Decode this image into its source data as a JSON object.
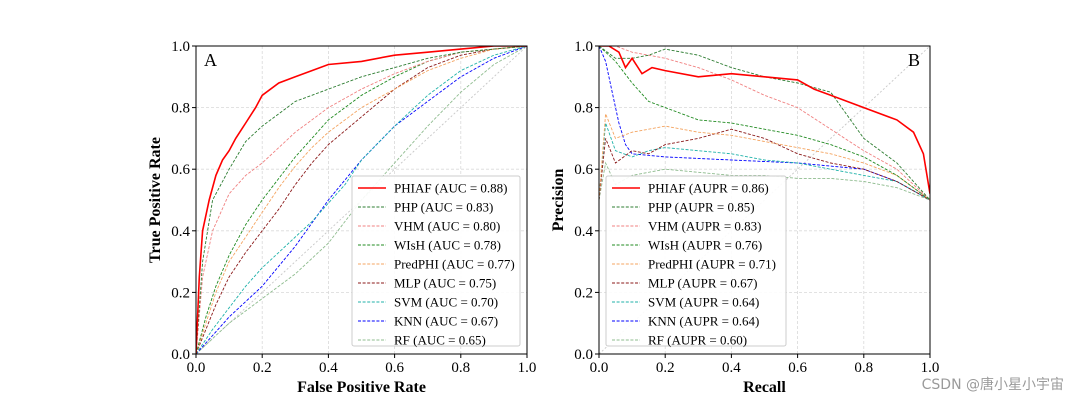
{
  "chart_data": [
    {
      "type": "line",
      "panel_label": "A",
      "xlabel": "False Positive Rate",
      "ylabel": "True Positive Rate",
      "xlim": [
        0,
        1
      ],
      "ylim": [
        0,
        1
      ],
      "xticks": [
        "0.0",
        "0.2",
        "0.4",
        "0.6",
        "0.8",
        "1.0"
      ],
      "yticks": [
        "0.0",
        "0.2",
        "0.4",
        "0.6",
        "0.8",
        "1.0"
      ],
      "grid": true,
      "legend_position": "lower-right",
      "series": [
        {
          "name": "PHIAF (AUC = 0.88)",
          "color": "#ff0000",
          "dash": "solid",
          "x": [
            0,
            0.01,
            0.02,
            0.04,
            0.06,
            0.08,
            0.1,
            0.12,
            0.15,
            0.18,
            0.2,
            0.25,
            0.3,
            0.35,
            0.4,
            0.5,
            0.6,
            0.7,
            0.8,
            0.9,
            1.0
          ],
          "y": [
            0,
            0.25,
            0.4,
            0.5,
            0.58,
            0.63,
            0.66,
            0.7,
            0.75,
            0.8,
            0.84,
            0.88,
            0.9,
            0.92,
            0.94,
            0.95,
            0.97,
            0.98,
            0.99,
            1.0,
            1.0
          ]
        },
        {
          "name": "PHP (AUC = 0.83)",
          "color": "#2e7d32",
          "dash": "dashed",
          "x": [
            0,
            0.02,
            0.05,
            0.1,
            0.15,
            0.2,
            0.25,
            0.3,
            0.35,
            0.4,
            0.5,
            0.6,
            0.7,
            0.8,
            0.9,
            1.0
          ],
          "y": [
            0,
            0.3,
            0.5,
            0.6,
            0.69,
            0.74,
            0.78,
            0.82,
            0.84,
            0.86,
            0.9,
            0.93,
            0.96,
            0.98,
            0.99,
            1.0
          ]
        },
        {
          "name": "VHM (AUC = 0.80)",
          "color": "#f08080",
          "dash": "dashed",
          "x": [
            0,
            0.02,
            0.05,
            0.1,
            0.15,
            0.2,
            0.25,
            0.3,
            0.35,
            0.4,
            0.5,
            0.6,
            0.7,
            0.8,
            0.9,
            1.0
          ],
          "y": [
            0,
            0.25,
            0.4,
            0.52,
            0.58,
            0.62,
            0.67,
            0.72,
            0.76,
            0.8,
            0.86,
            0.91,
            0.95,
            0.98,
            0.99,
            1.0
          ]
        },
        {
          "name": "WIsH (AUC = 0.78)",
          "color": "#228b22",
          "dash": "dashed",
          "x": [
            0,
            0.03,
            0.06,
            0.1,
            0.15,
            0.2,
            0.25,
            0.3,
            0.35,
            0.4,
            0.5,
            0.6,
            0.7,
            0.8,
            0.9,
            1.0
          ],
          "y": [
            0,
            0.12,
            0.22,
            0.32,
            0.42,
            0.5,
            0.57,
            0.64,
            0.7,
            0.76,
            0.84,
            0.9,
            0.95,
            0.98,
            0.99,
            1.0
          ]
        },
        {
          "name": "PredPHI (AUC = 0.77)",
          "color": "#f4a460",
          "dash": "dashed",
          "x": [
            0,
            0.03,
            0.06,
            0.1,
            0.15,
            0.2,
            0.25,
            0.3,
            0.35,
            0.4,
            0.5,
            0.6,
            0.7,
            0.8,
            0.9,
            1.0
          ],
          "y": [
            0,
            0.1,
            0.2,
            0.3,
            0.38,
            0.46,
            0.54,
            0.61,
            0.67,
            0.72,
            0.8,
            0.86,
            0.92,
            0.96,
            0.99,
            1.0
          ]
        },
        {
          "name": "MLP (AUC = 0.75)",
          "color": "#8b1a1a",
          "dash": "dashed",
          "x": [
            0,
            0.03,
            0.06,
            0.1,
            0.15,
            0.2,
            0.25,
            0.3,
            0.35,
            0.4,
            0.5,
            0.6,
            0.7,
            0.8,
            0.9,
            1.0
          ],
          "y": [
            0,
            0.08,
            0.16,
            0.25,
            0.33,
            0.4,
            0.47,
            0.55,
            0.62,
            0.68,
            0.77,
            0.86,
            0.93,
            0.97,
            0.99,
            1.0
          ]
        },
        {
          "name": "SVM (AUC = 0.70)",
          "color": "#20b2aa",
          "dash": "dashed",
          "x": [
            0,
            0.05,
            0.1,
            0.15,
            0.2,
            0.25,
            0.3,
            0.35,
            0.4,
            0.45,
            0.5,
            0.6,
            0.7,
            0.8,
            0.9,
            1.0
          ],
          "y": [
            0,
            0.08,
            0.15,
            0.22,
            0.28,
            0.33,
            0.38,
            0.43,
            0.49,
            0.55,
            0.63,
            0.74,
            0.84,
            0.92,
            0.97,
            1.0
          ]
        },
        {
          "name": "KNN (AUC = 0.67)",
          "color": "#0000ff",
          "dash": "dashed",
          "x": [
            0,
            0.05,
            0.1,
            0.2,
            0.3,
            0.4,
            0.5,
            0.6,
            0.7,
            0.8,
            0.9,
            1.0
          ],
          "y": [
            0,
            0.06,
            0.12,
            0.22,
            0.35,
            0.5,
            0.63,
            0.74,
            0.82,
            0.9,
            0.96,
            1.0
          ]
        },
        {
          "name": "RF (AUC = 0.65)",
          "color": "#8fbc8f",
          "dash": "dashed",
          "x": [
            0,
            0.05,
            0.1,
            0.2,
            0.3,
            0.4,
            0.5,
            0.6,
            0.7,
            0.8,
            0.9,
            1.0
          ],
          "y": [
            0,
            0.05,
            0.1,
            0.18,
            0.26,
            0.36,
            0.5,
            0.62,
            0.74,
            0.85,
            0.94,
            1.0
          ]
        },
        {
          "name": "chance",
          "color": "#c8c8c8",
          "dash": "dotted",
          "x": [
            0,
            1
          ],
          "y": [
            0,
            1
          ],
          "legend": false
        }
      ]
    },
    {
      "type": "line",
      "panel_label": "B",
      "xlabel": "Recall",
      "ylabel": "Precision",
      "xlim": [
        0,
        1
      ],
      "ylim": [
        0,
        1
      ],
      "xticks": [
        "0.0",
        "0.2",
        "0.4",
        "0.6",
        "0.8",
        "1.0"
      ],
      "yticks": [
        "0.0",
        "0.2",
        "0.4",
        "0.6",
        "0.8",
        "1.0"
      ],
      "grid": true,
      "legend_position": "lower-left",
      "series": [
        {
          "name": "PHIAF (AUPR = 0.86)",
          "color": "#ff0000",
          "dash": "solid",
          "x": [
            0,
            0.03,
            0.06,
            0.08,
            0.1,
            0.13,
            0.16,
            0.2,
            0.3,
            0.4,
            0.5,
            0.6,
            0.65,
            0.7,
            0.8,
            0.9,
            0.95,
            0.98,
            1.0
          ],
          "y": [
            1.0,
            1.0,
            0.98,
            0.93,
            0.96,
            0.91,
            0.93,
            0.92,
            0.9,
            0.91,
            0.9,
            0.89,
            0.86,
            0.84,
            0.8,
            0.76,
            0.72,
            0.65,
            0.52
          ]
        },
        {
          "name": "PHP (AUPR = 0.85)",
          "color": "#2e7d32",
          "dash": "dashed",
          "x": [
            0,
            0.05,
            0.1,
            0.15,
            0.2,
            0.3,
            0.4,
            0.5,
            0.6,
            0.7,
            0.8,
            0.9,
            1.0
          ],
          "y": [
            1.0,
            0.96,
            0.96,
            0.97,
            0.99,
            0.97,
            0.93,
            0.9,
            0.88,
            0.85,
            0.7,
            0.62,
            0.5
          ]
        },
        {
          "name": "VHM (AUPR = 0.83)",
          "color": "#f08080",
          "dash": "dashed",
          "x": [
            0,
            0.05,
            0.1,
            0.15,
            0.2,
            0.3,
            0.4,
            0.5,
            0.6,
            0.7,
            0.8,
            0.9,
            1.0
          ],
          "y": [
            1.0,
            1.0,
            0.98,
            0.97,
            0.96,
            0.93,
            0.89,
            0.84,
            0.8,
            0.73,
            0.66,
            0.6,
            0.5
          ]
        },
        {
          "name": "WIsH (AUPR = 0.76)",
          "color": "#228b22",
          "dash": "dashed",
          "x": [
            0,
            0.05,
            0.1,
            0.15,
            0.2,
            0.3,
            0.4,
            0.5,
            0.6,
            0.7,
            0.8,
            0.9,
            1.0
          ],
          "y": [
            1.0,
            0.95,
            0.88,
            0.82,
            0.8,
            0.76,
            0.75,
            0.73,
            0.71,
            0.68,
            0.64,
            0.58,
            0.5
          ]
        },
        {
          "name": "PredPHI (AUPR = 0.71)",
          "color": "#f4a460",
          "dash": "dashed",
          "x": [
            0,
            0.02,
            0.05,
            0.1,
            0.15,
            0.2,
            0.3,
            0.4,
            0.5,
            0.6,
            0.7,
            0.8,
            0.9,
            1.0
          ],
          "y": [
            0.5,
            0.78,
            0.7,
            0.72,
            0.73,
            0.74,
            0.72,
            0.71,
            0.69,
            0.67,
            0.65,
            0.62,
            0.58,
            0.5
          ]
        },
        {
          "name": "MLP (AUPR = 0.67)",
          "color": "#8b1a1a",
          "dash": "dashed",
          "x": [
            0,
            0.02,
            0.05,
            0.1,
            0.15,
            0.2,
            0.3,
            0.4,
            0.5,
            0.6,
            0.7,
            0.8,
            0.9,
            1.0
          ],
          "y": [
            0.5,
            0.7,
            0.62,
            0.66,
            0.65,
            0.68,
            0.7,
            0.73,
            0.7,
            0.65,
            0.62,
            0.6,
            0.56,
            0.5
          ]
        },
        {
          "name": "SVM (AUPR = 0.64)",
          "color": "#20b2aa",
          "dash": "dashed",
          "x": [
            0,
            0.02,
            0.05,
            0.1,
            0.15,
            0.2,
            0.3,
            0.4,
            0.5,
            0.6,
            0.7,
            0.8,
            0.9,
            1.0
          ],
          "y": [
            0.5,
            0.75,
            0.66,
            0.64,
            0.66,
            0.67,
            0.66,
            0.65,
            0.63,
            0.62,
            0.6,
            0.58,
            0.56,
            0.5
          ]
        },
        {
          "name": "KNN (AUPR = 0.64)",
          "color": "#0000ff",
          "dash": "dashed",
          "x": [
            0,
            0.02,
            0.04,
            0.06,
            0.08,
            0.1,
            0.2,
            0.4,
            0.6,
            0.8,
            0.9,
            1.0
          ],
          "y": [
            1.0,
            0.95,
            0.85,
            0.75,
            0.68,
            0.65,
            0.64,
            0.63,
            0.62,
            0.6,
            0.56,
            0.5
          ]
        },
        {
          "name": "RF (AUPR = 0.60)",
          "color": "#8fbc8f",
          "dash": "dashed",
          "x": [
            0,
            0.02,
            0.05,
            0.1,
            0.2,
            0.3,
            0.4,
            0.5,
            0.6,
            0.7,
            0.8,
            0.9,
            1.0
          ],
          "y": [
            0.5,
            0.62,
            0.55,
            0.58,
            0.6,
            0.59,
            0.58,
            0.58,
            0.57,
            0.57,
            0.56,
            0.54,
            0.5
          ]
        },
        {
          "name": "reference",
          "color": "#c8c8c8",
          "dash": "dotted",
          "x": [
            0,
            1
          ],
          "y": [
            0,
            1
          ],
          "legend": false
        }
      ]
    }
  ],
  "watermark": "CSDN @唐小星小宇宙"
}
